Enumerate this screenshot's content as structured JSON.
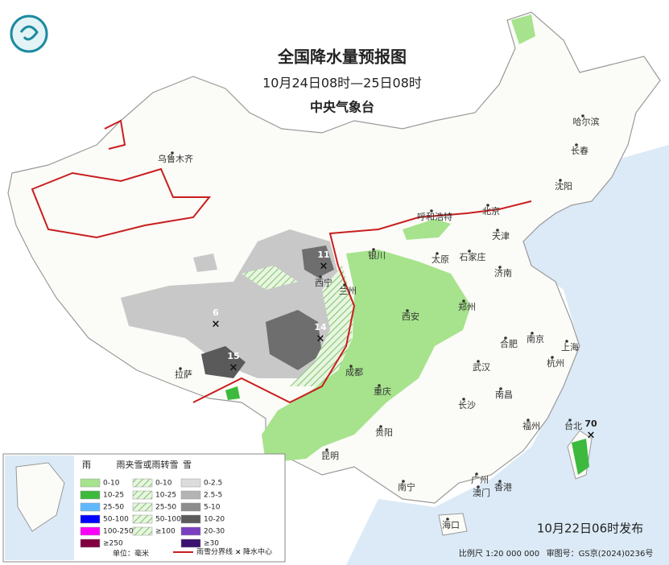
{
  "header": {
    "title": "全国降水量预报图",
    "subtitle": "10月24日08时—25日08时",
    "issuer": "中央气象台"
  },
  "cities": [
    {
      "label": "乌鲁木齐"
    },
    {
      "label": "哈尔滨"
    },
    {
      "label": "长春"
    },
    {
      "label": "沈阳"
    },
    {
      "label": "呼和浩特"
    },
    {
      "label": "北京"
    },
    {
      "label": "天津"
    },
    {
      "label": "石家庄"
    },
    {
      "label": "太原"
    },
    {
      "label": "银川"
    },
    {
      "label": "兰州"
    },
    {
      "label": "西宁"
    },
    {
      "label": "济南"
    },
    {
      "label": "郑州"
    },
    {
      "label": "西安"
    },
    {
      "label": "上海"
    },
    {
      "label": "南京"
    },
    {
      "label": "合肥"
    },
    {
      "label": "杭州"
    },
    {
      "label": "武汉"
    },
    {
      "label": "成都"
    },
    {
      "label": "重庆"
    },
    {
      "label": "南昌"
    },
    {
      "label": "长沙"
    },
    {
      "label": "拉萨"
    },
    {
      "label": "贵阳"
    },
    {
      "label": "福州"
    },
    {
      "label": "台北"
    },
    {
      "label": "昆明"
    },
    {
      "label": "南宁"
    },
    {
      "label": "广州"
    },
    {
      "label": "澳门"
    },
    {
      "label": "香港"
    },
    {
      "label": "海口"
    }
  ],
  "precipitation_centers": [
    {
      "value": 11
    },
    {
      "value": 6
    },
    {
      "value": 14
    },
    {
      "value": 15
    },
    {
      "value": 70
    }
  ],
  "legend": {
    "rain": {
      "title": "雨",
      "items": [
        "0-10",
        "10-25",
        "25-50",
        "50-100",
        "100-250",
        "≥250"
      ]
    },
    "sleet": {
      "title": "雨夹雪或雨转雪",
      "items": [
        "0-10",
        "10-25",
        "25-50",
        "50-100",
        "≥100"
      ]
    },
    "snow": {
      "title": "雪",
      "items": [
        "0-2.5",
        "2.5-5",
        "5-10",
        "10-20",
        "20-30",
        "≥30"
      ]
    },
    "unit": "单位：毫米",
    "lines": [
      {
        "label": "雨雪分界线"
      },
      {
        "label": "降水中心"
      }
    ]
  },
  "footer": {
    "issued": "10月22日06时发布",
    "scale": "比例尺 1:20 000 000",
    "review": "审图号：GS京(2024)0236号"
  }
}
